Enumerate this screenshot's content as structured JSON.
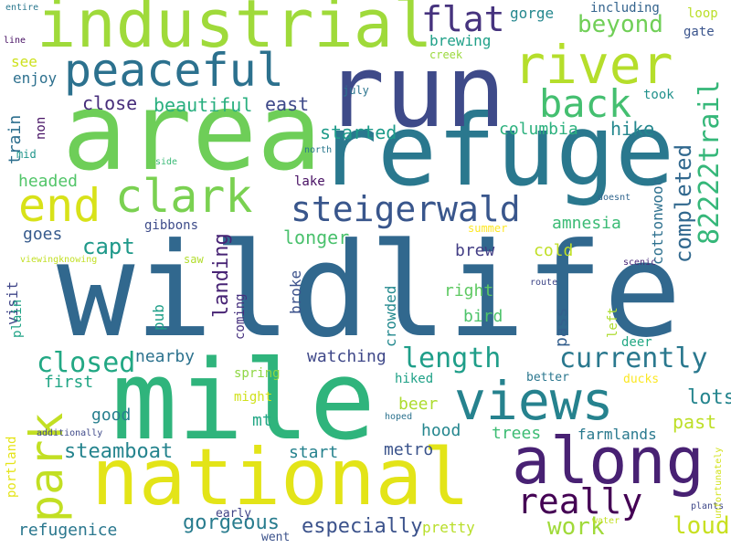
{
  "words": [
    {
      "text": "wildlife",
      "color": "#31688e"
    },
    {
      "text": "mile",
      "color": "#2fb47c"
    },
    {
      "text": "area",
      "color": "#6ece58"
    },
    {
      "text": "refuge",
      "color": "#2a788e"
    },
    {
      "text": "run",
      "color": "#3e4a89"
    },
    {
      "text": "national",
      "color": "#e3e418"
    },
    {
      "text": "industrial",
      "color": "#9fda3a"
    },
    {
      "text": "along",
      "color": "#482173"
    },
    {
      "text": "views",
      "color": "#26828e"
    },
    {
      "text": "peaceful",
      "color": "#2c718e"
    },
    {
      "text": "river",
      "color": "#b5de2b"
    },
    {
      "text": "park",
      "color": "#c2df23"
    },
    {
      "text": "clark",
      "color": "#7ad151"
    },
    {
      "text": "end",
      "color": "#d8e219"
    },
    {
      "text": "steigerwald",
      "color": "#39568c"
    },
    {
      "text": "flat",
      "color": "#46337e"
    },
    {
      "text": "back",
      "color": "#44bf70"
    },
    {
      "text": "really",
      "color": "#440154"
    },
    {
      "text": "82222trail",
      "color": "#35b779"
    },
    {
      "text": "completed",
      "color": "#31688e"
    },
    {
      "text": "currently",
      "color": "#2a788e"
    },
    {
      "text": "length",
      "color": "#1f9e89"
    },
    {
      "text": "closed",
      "color": "#22a884"
    },
    {
      "text": "work",
      "color": "#a0da39"
    },
    {
      "text": "loud",
      "color": "#c8e020"
    },
    {
      "text": "steamboat",
      "color": "#25848e"
    },
    {
      "text": "especially",
      "color": "#3b528b"
    },
    {
      "text": "gorgeous",
      "color": "#287c8e"
    },
    {
      "text": "capt",
      "color": "#1f998a"
    },
    {
      "text": "beyond",
      "color": "#70cf57"
    },
    {
      "text": "columbia",
      "color": "#2cb17e"
    },
    {
      "text": "longer",
      "color": "#4ac16d"
    },
    {
      "text": "landing",
      "color": "#482475"
    },
    {
      "text": "lots",
      "color": "#25858e"
    },
    {
      "text": "past",
      "color": "#bddf26"
    },
    {
      "text": "hike",
      "color": "#24878e"
    },
    {
      "text": "beautiful",
      "color": "#29af7f"
    },
    {
      "text": "close",
      "color": "#472d7b"
    },
    {
      "text": "east",
      "color": "#3e4989"
    },
    {
      "text": "started",
      "color": "#1e9b8a"
    },
    {
      "text": "headed",
      "color": "#52c569"
    },
    {
      "text": "train",
      "color": "#2e6f8e"
    },
    {
      "text": "goes",
      "color": "#375b8d"
    },
    {
      "text": "cottonwood",
      "color": "#2d708e"
    },
    {
      "text": "amnesia",
      "color": "#3bbb75"
    },
    {
      "text": "brew",
      "color": "#433e85"
    },
    {
      "text": "watching",
      "color": "#3f4889"
    },
    {
      "text": "nearby",
      "color": "#2c728e"
    },
    {
      "text": "first",
      "color": "#21a685"
    },
    {
      "text": "good",
      "color": "#277f8e"
    },
    {
      "text": "mt",
      "color": "#22a785"
    },
    {
      "text": "hood",
      "color": "#24868e"
    },
    {
      "text": "trees",
      "color": "#3dbc74"
    },
    {
      "text": "farmlands",
      "color": "#29798e"
    },
    {
      "text": "metro",
      "color": "#3a538b"
    },
    {
      "text": "start",
      "color": "#26828e"
    },
    {
      "text": "beer",
      "color": "#addc30"
    },
    {
      "text": "cold",
      "color": "#c0df25"
    },
    {
      "text": "pub",
      "color": "#1f9f88"
    },
    {
      "text": "bird",
      "color": "#4ec36b"
    },
    {
      "text": "right",
      "color": "#5ec962"
    },
    {
      "text": "pass",
      "color": "#345f8d"
    },
    {
      "text": "crowded",
      "color": "#23898e"
    },
    {
      "text": "broke",
      "color": "#3b518b"
    },
    {
      "text": "visit",
      "color": "#404688"
    },
    {
      "text": "plain",
      "color": "#20a386"
    },
    {
      "text": "coming",
      "color": "#46307e"
    },
    {
      "text": "refugenice",
      "color": "#2a778e"
    },
    {
      "text": "pretty",
      "color": "#b8de29"
    },
    {
      "text": "gorge",
      "color": "#24878e"
    },
    {
      "text": "brewing",
      "color": "#1fa088"
    },
    {
      "text": "see",
      "color": "#cde11d"
    },
    {
      "text": "enjoy",
      "color": "#2d708e"
    },
    {
      "text": "non",
      "color": "#471365"
    },
    {
      "text": "mid",
      "color": "#1f958b"
    },
    {
      "text": "took",
      "color": "#21918c"
    },
    {
      "text": "loop",
      "color": "#bade28"
    },
    {
      "text": "gate",
      "color": "#3a548c"
    },
    {
      "text": "including",
      "color": "#33638d"
    },
    {
      "text": "creek",
      "color": "#9bd93c"
    },
    {
      "text": "july",
      "color": "#2b748e"
    },
    {
      "text": "lake",
      "color": "#471063"
    },
    {
      "text": "gibbons",
      "color": "#3e4c8a"
    },
    {
      "text": "north",
      "color": "#2a788e"
    },
    {
      "text": "side",
      "color": "#3aba76"
    },
    {
      "text": "saw",
      "color": "#b2dd2d"
    },
    {
      "text": "summer",
      "color": "#fde725"
    },
    {
      "text": "doesnt",
      "color": "#31668e"
    },
    {
      "text": "route",
      "color": "#3f4788"
    },
    {
      "text": "scenic",
      "color": "#482878"
    },
    {
      "text": "left",
      "color": "#addc30"
    },
    {
      "text": "deer",
      "color": "#22a884"
    },
    {
      "text": "better",
      "color": "#2a768e"
    },
    {
      "text": "ducks",
      "color": "#fbe723"
    },
    {
      "text": "hiked",
      "color": "#1fa187"
    },
    {
      "text": "spring",
      "color": "#8fd744"
    },
    {
      "text": "might",
      "color": "#d0e11c"
    },
    {
      "text": "portland",
      "color": "#e5e419"
    },
    {
      "text": "early",
      "color": "#414487"
    },
    {
      "text": "went",
      "color": "#3b528b"
    },
    {
      "text": "water",
      "color": "#c2df23"
    },
    {
      "text": "plants",
      "color": "#3f4889"
    },
    {
      "text": "unfortunately",
      "color": "#d2e21b"
    },
    {
      "text": "additionally",
      "color": "#3e4989"
    },
    {
      "text": "hoped",
      "color": "#2c728e"
    },
    {
      "text": "viewingknowing",
      "color": "#c2df23"
    },
    {
      "text": "entire",
      "color": "#2a778e"
    },
    {
      "text": "line",
      "color": "#471063"
    }
  ]
}
